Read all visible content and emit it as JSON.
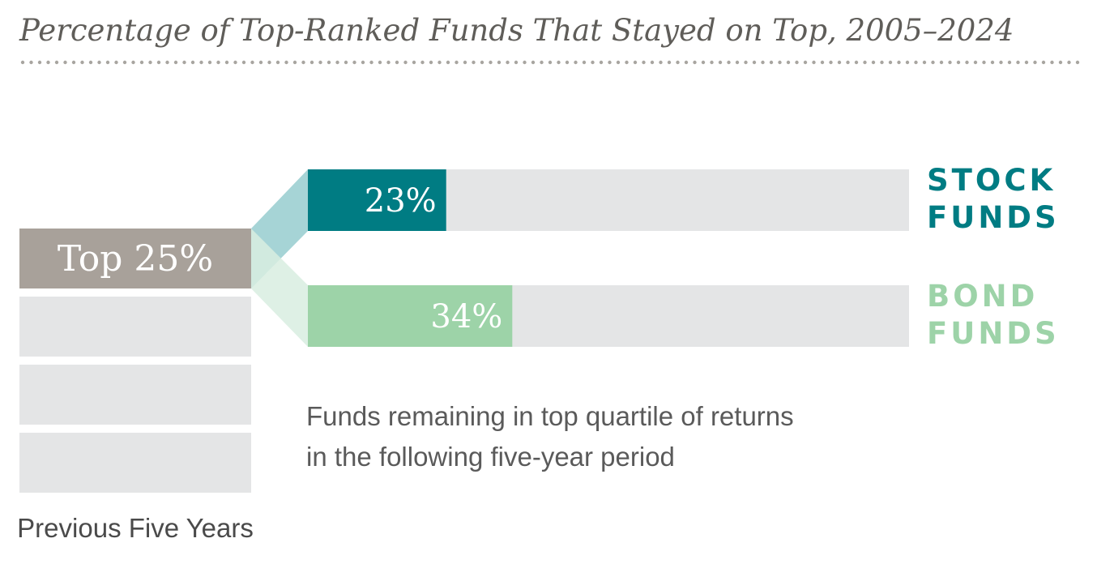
{
  "chart_data": {
    "type": "bar",
    "title": "Percentage of Top-Ranked Funds That Stayed on Top, 2005–2024",
    "source_category": "Top 25%",
    "source_axis_label": "Previous Five Years",
    "note_lines": [
      "Funds remaining in top quartile of returns",
      "in the following five-year period"
    ],
    "unit": "%",
    "ylim": [
      0,
      100
    ],
    "series": [
      {
        "name_lines": [
          "STOCK",
          "FUNDS"
        ],
        "value": 23,
        "label": "23%",
        "color": "#007c83",
        "track_color": "#e4e5e6",
        "connector_color": "#97cdcf"
      },
      {
        "name_lines": [
          "BOND",
          "FUNDS"
        ],
        "value": 34,
        "label": "34%",
        "color": "#9dd3a8",
        "track_color": "#e4e5e6",
        "connector_color": "#d8ede0"
      }
    ],
    "quartile_boxes": 4,
    "colors": {
      "top_box": "#a8a19a",
      "empty_box": "#e4e5e6",
      "title": "#5f5d59",
      "dots": "#a8a5a0"
    }
  }
}
